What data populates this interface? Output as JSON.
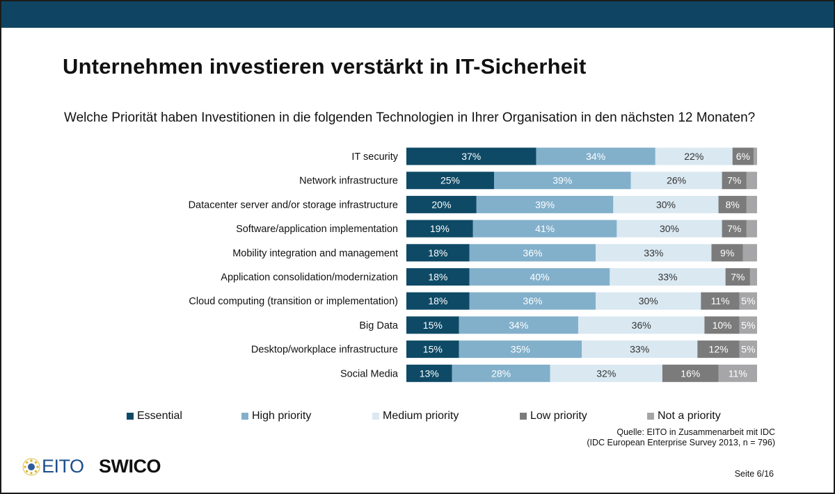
{
  "header": {
    "title": "Unternehmen investieren verstärkt in IT-Sicherheit",
    "question": "Welche Priorität haben Investitionen in die folgenden Technologien in Ihrer Organisation in den nächsten 12 Monaten?"
  },
  "colors": {
    "band": "#0f4563",
    "essential": "#0e4a66",
    "high_priority": "#82b0cb",
    "medium_priority": "#d9e8f1",
    "low_priority": "#7b7b7c",
    "not_a_priority": "#a6a6a8"
  },
  "chart_data": {
    "type": "bar",
    "orientation": "horizontal",
    "stacked": true,
    "unit": "%",
    "categories": [
      "IT security",
      "Network infrastructure",
      "Datacenter server and/or storage infrastructure",
      "Software/application implementation",
      "Mobility integration and management",
      "Application consolidation/modernization",
      "Cloud computing (transition or implementation)",
      "Big Data",
      "Desktop/workplace infrastructure",
      "Social Media"
    ],
    "series": [
      {
        "name": "Essential",
        "values": [
          37,
          25,
          20,
          19,
          18,
          18,
          18,
          15,
          15,
          13
        ]
      },
      {
        "name": "High priority",
        "values": [
          34,
          39,
          39,
          41,
          36,
          40,
          36,
          34,
          35,
          28
        ]
      },
      {
        "name": "Medium priority",
        "values": [
          22,
          26,
          30,
          30,
          33,
          33,
          30,
          36,
          33,
          32
        ]
      },
      {
        "name": "Low priority",
        "values": [
          6,
          7,
          8,
          7,
          9,
          7,
          11,
          10,
          12,
          16
        ]
      },
      {
        "name": "Not a priority",
        "values": [
          null,
          null,
          null,
          null,
          null,
          null,
          5,
          5,
          5,
          11
        ]
      }
    ],
    "xlim": [
      0,
      100
    ],
    "grid": false,
    "legend_position": "bottom"
  },
  "footer": {
    "source_line1": "Quelle: EITO in Zusammenarbeit mit IDC",
    "source_line2": "(IDC European Enterprise Survey 2013, n = 796)",
    "page": "Seite 6/16",
    "logo_eito": "EITO",
    "logo_swico": "SWICO"
  }
}
